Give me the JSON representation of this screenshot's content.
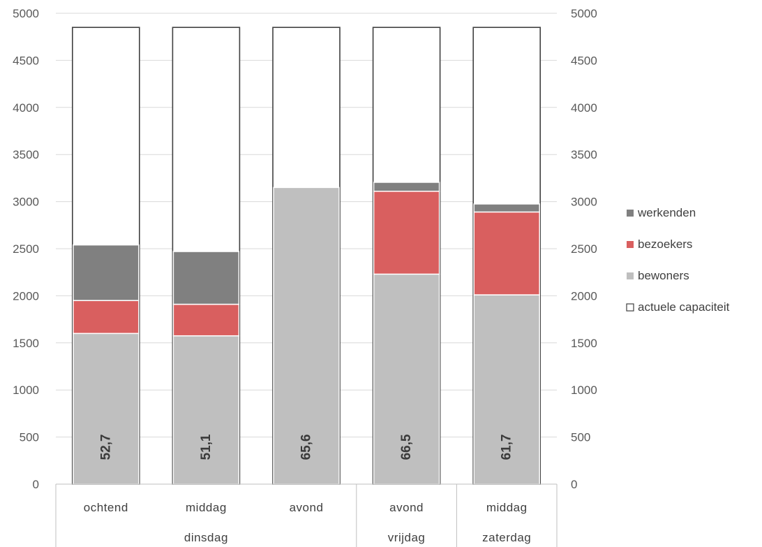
{
  "chart_data": {
    "type": "bar",
    "stacked": true,
    "ylim": [
      0,
      5000
    ],
    "yticks": [
      0,
      500,
      1000,
      1500,
      2000,
      2500,
      3000,
      3500,
      4000,
      4500,
      5000
    ],
    "secondary_axis": true,
    "grid": true,
    "legend_position": "right",
    "categories": [
      "ochtend",
      "middag",
      "avond",
      "avond",
      "middag"
    ],
    "groups": [
      {
        "label": "dinsdag",
        "span": 3
      },
      {
        "label": "vrijdag",
        "span": 1
      },
      {
        "label": "zaterdag",
        "span": 1
      }
    ],
    "series": [
      {
        "name": "bewoners",
        "color": "#bfbfbf",
        "values": [
          1600,
          1575,
          3150,
          2230,
          2010
        ]
      },
      {
        "name": "bezoekers",
        "color": "#d95f5f",
        "values": [
          350,
          335,
          0,
          880,
          880
        ]
      },
      {
        "name": "werkenden",
        "color": "#808080",
        "values": [
          590,
          560,
          0,
          95,
          85
        ]
      },
      {
        "name": "actuele capaciteit",
        "color": "#ffffff",
        "outline": "#404040",
        "values": [
          4850,
          4850,
          4850,
          4850,
          4850
        ]
      }
    ],
    "data_labels": [
      "52,7",
      "51,1",
      "65,6",
      "66,5",
      "61,7"
    ],
    "legend": [
      "werkenden",
      "bezoekers",
      "bewoners",
      "actuele capaciteit"
    ]
  }
}
